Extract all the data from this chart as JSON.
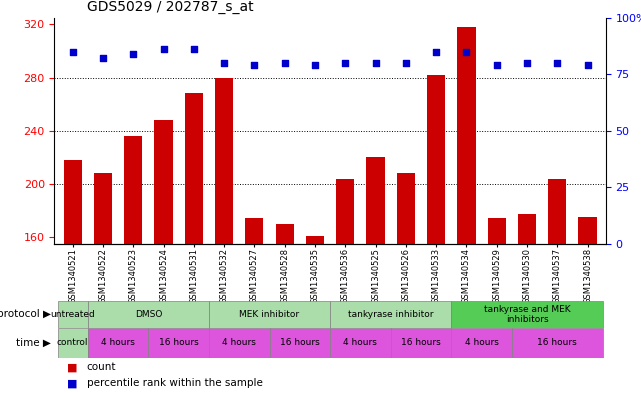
{
  "title": "GDS5029 / 202787_s_at",
  "samples": [
    "GSM1340521",
    "GSM1340522",
    "GSM1340523",
    "GSM1340524",
    "GSM1340531",
    "GSM1340532",
    "GSM1340527",
    "GSM1340528",
    "GSM1340535",
    "GSM1340536",
    "GSM1340525",
    "GSM1340526",
    "GSM1340533",
    "GSM1340534",
    "GSM1340529",
    "GSM1340530",
    "GSM1340537",
    "GSM1340538"
  ],
  "counts": [
    218,
    208,
    236,
    248,
    268,
    280,
    174,
    170,
    161,
    204,
    220,
    208,
    282,
    318,
    174,
    177,
    204,
    175
  ],
  "percentiles": [
    85,
    82,
    84,
    86,
    86,
    80,
    79,
    80,
    79,
    80,
    80,
    80,
    85,
    85,
    79,
    80,
    80,
    79
  ],
  "ylim_left": [
    155,
    325
  ],
  "ylim_right": [
    0,
    100
  ],
  "yticks_left": [
    160,
    200,
    240,
    280,
    320
  ],
  "yticks_right": [
    0,
    25,
    50,
    75,
    100
  ],
  "bar_color": "#cc0000",
  "dot_color": "#0000cc",
  "bg_color": "#ffffff",
  "proto_spans": [
    [
      0,
      1,
      "untreated",
      "#aaddaa"
    ],
    [
      1,
      5,
      "DMSO",
      "#aaddaa"
    ],
    [
      5,
      9,
      "MEK inhibitor",
      "#aaddaa"
    ],
    [
      9,
      13,
      "tankyrase inhibitor",
      "#aaddaa"
    ],
    [
      13,
      18,
      "tankyrase and MEK\ninhibitors",
      "#55cc55"
    ]
  ],
  "time_spans": [
    [
      0,
      1,
      "control",
      "#aaddaa"
    ],
    [
      1,
      3,
      "4 hours",
      "#dd55dd"
    ],
    [
      3,
      5,
      "16 hours",
      "#dd55dd"
    ],
    [
      5,
      7,
      "4 hours",
      "#dd55dd"
    ],
    [
      7,
      9,
      "16 hours",
      "#dd55dd"
    ],
    [
      9,
      11,
      "4 hours",
      "#dd55dd"
    ],
    [
      11,
      13,
      "16 hours",
      "#dd55dd"
    ],
    [
      13,
      15,
      "4 hours",
      "#dd55dd"
    ],
    [
      15,
      18,
      "16 hours",
      "#dd55dd"
    ]
  ],
  "legend_count_color": "#cc0000",
  "legend_dot_color": "#0000cc"
}
